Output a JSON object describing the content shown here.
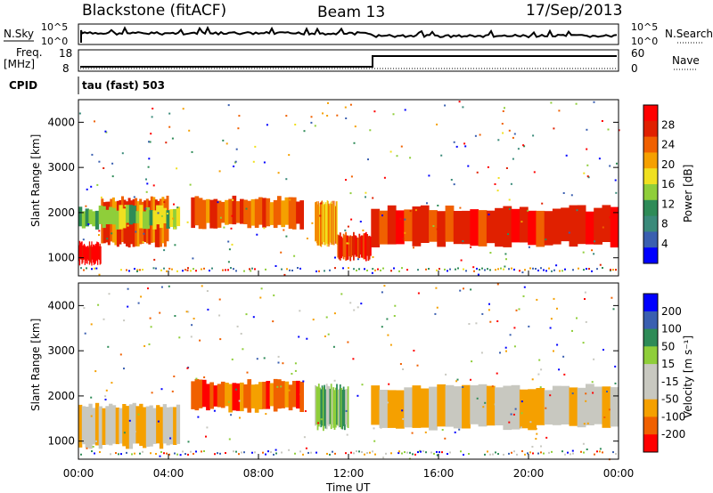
{
  "header": {
    "station": "Blackstone (fitACF)",
    "beam": "Beam 13",
    "date": "17/Sep/2013"
  },
  "top_panels": {
    "nsky_label": "N.Sky",
    "nsky_ticks": [
      "10^5",
      "10^0"
    ],
    "nsearch_label": "N.Search",
    "nsearch_ticks": [
      "10^5",
      "10^0"
    ],
    "freq_label": "Freq.",
    "freq_unit": "[MHz]",
    "freq_ticks": [
      "18",
      "8"
    ],
    "nave_label": "Nave",
    "nave_ticks": [
      "60",
      "0"
    ],
    "cpid_label": "CPID",
    "cpid_text": "tau (fast) 503"
  },
  "chart_data": [
    {
      "type": "heatmap",
      "name": "power",
      "ylabel": "Slant Range [km]",
      "ylim": [
        600,
        4500
      ],
      "yticks": [
        "4000",
        "3000",
        "2000",
        "1000"
      ],
      "xlim": [
        "00:00",
        "24:00"
      ],
      "colorbar_label": "Power [dB]",
      "colorbar_ticks": [
        "28",
        "24",
        "20",
        "16",
        "12",
        "8",
        "4"
      ],
      "colors": [
        "#0000ff",
        "#3a5fb0",
        "#3a8a7a",
        "#2e8b57",
        "#8fce3a",
        "#f0e020",
        "#f5a000",
        "#f06000",
        "#e02000",
        "#ff0000"
      ],
      "bands": [
        {
          "t": [
            0.0,
            1.0
          ],
          "r": [
            900,
            1300
          ],
          "level": 9
        },
        {
          "t": [
            1.0,
            4.0
          ],
          "r": [
            1300,
            2300
          ],
          "level": 7
        },
        {
          "t": [
            0.0,
            4.5
          ],
          "r": [
            1700,
            2100
          ],
          "level": 4
        },
        {
          "t": [
            5.0,
            10.0
          ],
          "r": [
            1700,
            2300
          ],
          "level": 7
        },
        {
          "t": [
            10.5,
            11.5
          ],
          "r": [
            1300,
            2200
          ],
          "level": 6
        },
        {
          "t": [
            11.5,
            13.0
          ],
          "r": [
            1000,
            1500
          ],
          "level": 8
        },
        {
          "t": [
            13.0,
            24.0
          ],
          "r": [
            1300,
            2100
          ],
          "level": 8
        }
      ]
    },
    {
      "type": "heatmap",
      "name": "velocity",
      "ylabel": "Slant Range [km]",
      "ylim": [
        600,
        4500
      ],
      "yticks": [
        "4000",
        "3000",
        "2000",
        "1000"
      ],
      "xlim": [
        "00:00",
        "24:00"
      ],
      "xlabel": "Time UT",
      "xticks": [
        "00:00",
        "04:00",
        "08:00",
        "12:00",
        "16:00",
        "20:00",
        "00:00"
      ],
      "colorbar_label": "Velocity [m s⁻¹]",
      "colorbar_ticks": [
        "200",
        "100",
        "50",
        "15",
        "-15",
        "-50",
        "-100",
        "-200"
      ],
      "colors": [
        "#ff0000",
        "#f06000",
        "#f5a000",
        "#c8c8c0",
        "#c8c8c0",
        "#8fce3a",
        "#2e8b57",
        "#3a5fb0",
        "#0000ff"
      ],
      "bands": [
        {
          "t": [
            0.0,
            4.5
          ],
          "r": [
            900,
            1800
          ],
          "level": 3
        },
        {
          "t": [
            5.0,
            10.0
          ],
          "r": [
            1700,
            2300
          ],
          "level": 1
        },
        {
          "t": [
            10.5,
            12.0
          ],
          "r": [
            1300,
            2200
          ],
          "level": 5
        },
        {
          "t": [
            13.0,
            24.0
          ],
          "r": [
            1300,
            2200
          ],
          "level": 3
        }
      ]
    }
  ]
}
